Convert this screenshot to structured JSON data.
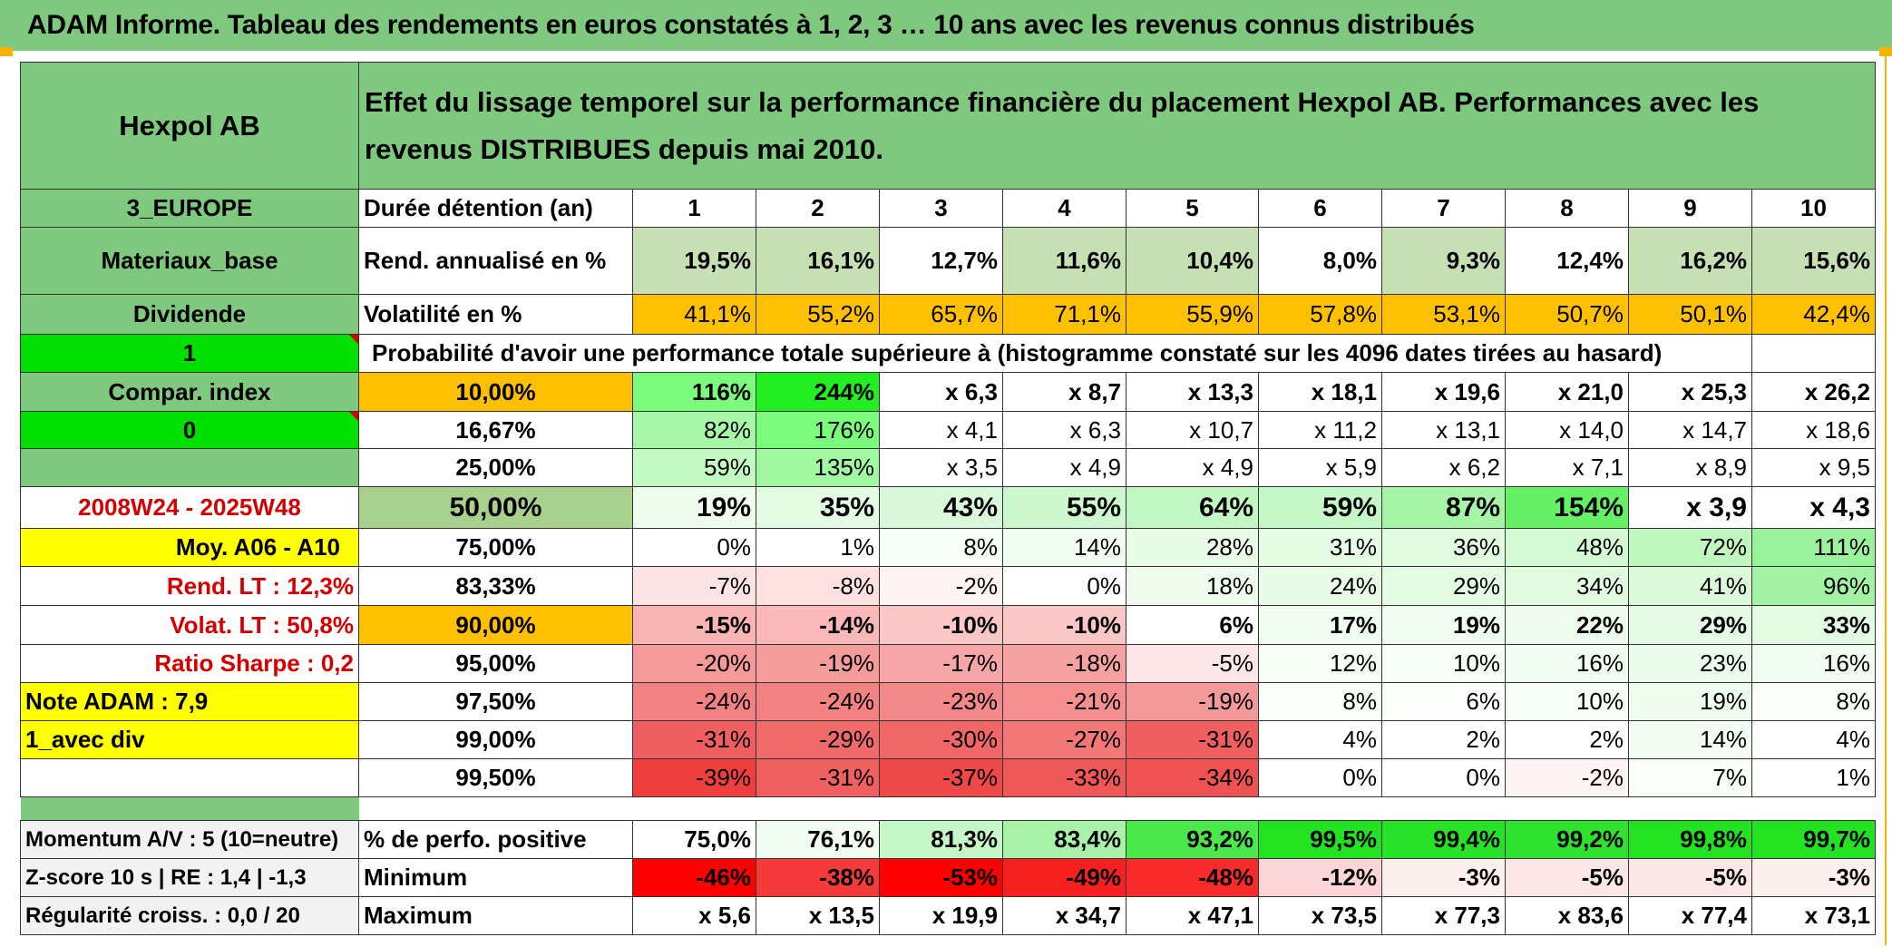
{
  "banner": "ADAM Informe. Tableau des rendements en euros constatés à 1, 2, 3 … 10 ans avec les revenus connus distribués",
  "header": {
    "company": "Hexpol AB",
    "title": "Effet du lissage temporel sur la performance financière du placement Hexpol AB. Performances avec les revenus DISTRIBUES depuis mai 2010."
  },
  "left": {
    "region": "3_EUROPE",
    "sector": "Materiaux_base",
    "dividend": "Dividende",
    "one": "1",
    "compar": "Compar. index",
    "zero": "0",
    "period": "2008W24 - 2025W48",
    "moy": "Moy. A06 - A10",
    "rend_lt": "Rend. LT :    12,3%",
    "volat_lt": "Volat. LT :    50,8%",
    "sharpe": "Ratio Sharpe :    0,2",
    "note": "Note ADAM : 7,9",
    "avec_div": "1_avec div",
    "momentum": "Momentum A/V : 5 (10=neutre)",
    "zscore": "Z-score 10 s | RE : 1,4 | -1,3",
    "regularite": "Régularité croiss. : 0,0 / 20"
  },
  "labels": {
    "duree": "Durée détention (an)",
    "rend": "Rend. annualisé en %",
    "vol": "Volatilité en %",
    "prob": "Probabilité d'avoir une performance totale supérieure à (histogramme constaté sur les 4096 dates tirées au hasard)",
    "positive": "% de perfo. positive",
    "minimum": "Minimum",
    "maximum": "Maximum"
  },
  "years": [
    "1",
    "2",
    "3",
    "4",
    "5",
    "6",
    "7",
    "8",
    "9",
    "10"
  ],
  "rend": [
    "19,5%",
    "16,1%",
    "12,7%",
    "11,6%",
    "10,4%",
    "8,0%",
    "9,3%",
    "12,4%",
    "16,2%",
    "15,6%"
  ],
  "vol": [
    "41,1%",
    "55,2%",
    "65,7%",
    "71,1%",
    "55,9%",
    "57,8%",
    "53,1%",
    "50,7%",
    "50,1%",
    "42,4%"
  ],
  "prob_rows": [
    {
      "p": "10,00%",
      "bold": true,
      "v": [
        "116%",
        "244%",
        "x 6,3",
        "x 8,7",
        "x 13,3",
        "x 18,1",
        "x 19,6",
        "x 21,0",
        "x 25,3",
        "x 26,2"
      ]
    },
    {
      "p": "16,67%",
      "bold": false,
      "v": [
        "82%",
        "176%",
        "x 4,1",
        "x 6,3",
        "x 10,7",
        "x 11,2",
        "x 13,1",
        "x 14,0",
        "x 14,7",
        "x 18,6"
      ]
    },
    {
      "p": "25,00%",
      "bold": false,
      "v": [
        "59%",
        "135%",
        "x 3,5",
        "x 4,9",
        "x 4,9",
        "x 5,9",
        "x 6,2",
        "x 7,1",
        "x 8,9",
        "x 9,5"
      ]
    },
    {
      "p": "50,00%",
      "bold": true,
      "big": true,
      "v": [
        "19%",
        "35%",
        "43%",
        "55%",
        "64%",
        "59%",
        "87%",
        "154%",
        "x 3,9",
        "x 4,3"
      ]
    },
    {
      "p": "75,00%",
      "bold": false,
      "v": [
        "0%",
        "1%",
        "8%",
        "14%",
        "28%",
        "31%",
        "36%",
        "48%",
        "72%",
        "111%"
      ]
    },
    {
      "p": "83,33%",
      "bold": false,
      "v": [
        "-7%",
        "-8%",
        "-2%",
        "0%",
        "18%",
        "24%",
        "29%",
        "34%",
        "41%",
        "96%"
      ]
    },
    {
      "p": "90,00%",
      "bold": true,
      "v": [
        "-15%",
        "-14%",
        "-10%",
        "-10%",
        "6%",
        "17%",
        "19%",
        "22%",
        "29%",
        "33%"
      ]
    },
    {
      "p": "95,00%",
      "bold": false,
      "v": [
        "-20%",
        "-19%",
        "-17%",
        "-18%",
        "-5%",
        "12%",
        "10%",
        "16%",
        "23%",
        "16%"
      ]
    },
    {
      "p": "97,50%",
      "bold": false,
      "v": [
        "-24%",
        "-24%",
        "-23%",
        "-21%",
        "-19%",
        "8%",
        "6%",
        "10%",
        "19%",
        "8%"
      ]
    },
    {
      "p": "99,00%",
      "bold": false,
      "v": [
        "-31%",
        "-29%",
        "-30%",
        "-27%",
        "-31%",
        "4%",
        "2%",
        "2%",
        "14%",
        "4%"
      ]
    },
    {
      "p": "99,50%",
      "bold": false,
      "v": [
        "-39%",
        "-31%",
        "-37%",
        "-33%",
        "-34%",
        "0%",
        "0%",
        "-2%",
        "7%",
        "1%"
      ]
    }
  ],
  "positive": [
    "75,0%",
    "76,1%",
    "81,3%",
    "83,4%",
    "93,2%",
    "99,5%",
    "99,4%",
    "99,2%",
    "99,8%",
    "99,7%"
  ],
  "minimum": [
    "-46%",
    "-38%",
    "-53%",
    "-49%",
    "-48%",
    "-12%",
    "-3%",
    "-5%",
    "-5%",
    "-3%"
  ],
  "maximum": [
    "x 5,6",
    "x 13,5",
    "x 19,9",
    "x 34,7",
    "x 47,1",
    "x 73,5",
    "x 77,3",
    "x 83,6",
    "x 77,4",
    "x 73,1"
  ],
  "colors": {
    "banner_green": "#7fc97f",
    "bright_green": "#00e000",
    "yellow": "#ffff00",
    "orange": "#ffc000",
    "label_red": "#d40000"
  }
}
